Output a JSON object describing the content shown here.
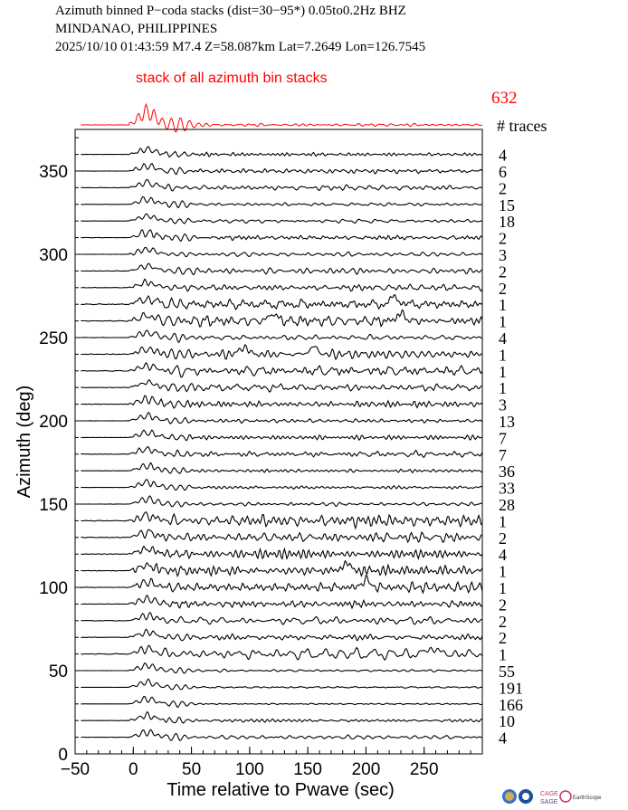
{
  "header": {
    "line1": "Azimuth binned P−coda stacks (dist=30−95*)  0.05to0.2Hz  BHZ",
    "line2": "MINDANAO, PHILIPPINES",
    "line3": "2025/10/10  01:43:59  M7.4  Z=58.087km Lat=7.2649 Lon=126.7545"
  },
  "stack_panel": {
    "label": "stack of all azimuth bin stacks",
    "total_traces": "632",
    "traces_header": "# traces",
    "color": "#ff0000"
  },
  "logos": {
    "items": [
      "earth-globe-logo",
      "nsf-logo",
      "cage-sage-logo",
      "earthscope-logo"
    ],
    "cage_text": "CAGE",
    "sage_text": "SAGE",
    "earthscope_text": "EarthScope"
  },
  "chart_data": {
    "type": "line",
    "xlabel": "Time relative to Pwave (sec)",
    "ylabel": "Azimuth (deg)",
    "xlim": [
      -50,
      300
    ],
    "ylim": [
      0,
      375
    ],
    "xticks": [
      -50,
      0,
      50,
      100,
      150,
      200,
      250
    ],
    "yticks": [
      0,
      50,
      100,
      150,
      200,
      250,
      300,
      350
    ],
    "grid": false,
    "trace_color": "#000000",
    "bins": [
      {
        "azimuth": 10,
        "traces": "4",
        "noise": 0.3,
        "late": []
      },
      {
        "azimuth": 20,
        "traces": "10",
        "noise": 0.28,
        "late": []
      },
      {
        "azimuth": 30,
        "traces": "166",
        "noise": 0.12,
        "late": []
      },
      {
        "azimuth": 40,
        "traces": "191",
        "noise": 0.12,
        "late": []
      },
      {
        "azimuth": 50,
        "traces": "55",
        "noise": 0.2,
        "late": []
      },
      {
        "azimuth": 60,
        "traces": "1",
        "noise": 0.7,
        "late": [
          257
        ]
      },
      {
        "azimuth": 70,
        "traces": "2",
        "noise": 0.6,
        "late": []
      },
      {
        "azimuth": 80,
        "traces": "2",
        "noise": 0.6,
        "late": []
      },
      {
        "azimuth": 90,
        "traces": "2",
        "noise": 0.6,
        "late": []
      },
      {
        "azimuth": 100,
        "traces": "1",
        "noise": 0.9,
        "late": [
          200
        ]
      },
      {
        "azimuth": 110,
        "traces": "1",
        "noise": 0.9,
        "late": [
          183
        ]
      },
      {
        "azimuth": 120,
        "traces": "4",
        "noise": 0.6,
        "late": []
      },
      {
        "azimuth": 130,
        "traces": "2",
        "noise": 0.7,
        "late": []
      },
      {
        "azimuth": 140,
        "traces": "1",
        "noise": 0.9,
        "late": []
      },
      {
        "azimuth": 150,
        "traces": "28",
        "noise": 0.3,
        "late": []
      },
      {
        "azimuth": 160,
        "traces": "33",
        "noise": 0.3,
        "late": []
      },
      {
        "azimuth": 170,
        "traces": "36",
        "noise": 0.3,
        "late": []
      },
      {
        "azimuth": 180,
        "traces": "7",
        "noise": 0.4,
        "late": []
      },
      {
        "azimuth": 190,
        "traces": "7",
        "noise": 0.4,
        "late": []
      },
      {
        "azimuth": 200,
        "traces": "13",
        "noise": 0.3,
        "late": []
      },
      {
        "azimuth": 210,
        "traces": "3",
        "noise": 0.5,
        "late": []
      },
      {
        "azimuth": 220,
        "traces": "1",
        "noise": 0.7,
        "late": []
      },
      {
        "azimuth": 230,
        "traces": "1",
        "noise": 0.7,
        "late": []
      },
      {
        "azimuth": 240,
        "traces": "1",
        "noise": 0.9,
        "late": [
          95,
          155
        ]
      },
      {
        "azimuth": 250,
        "traces": "4",
        "noise": 0.4,
        "late": []
      },
      {
        "azimuth": 260,
        "traces": "1",
        "noise": 0.9,
        "late": [
          120,
          230
        ]
      },
      {
        "azimuth": 270,
        "traces": "1",
        "noise": 0.9,
        "late": [
          225
        ]
      },
      {
        "azimuth": 280,
        "traces": "2",
        "noise": 0.5,
        "late": []
      },
      {
        "azimuth": 290,
        "traces": "2",
        "noise": 0.5,
        "late": []
      },
      {
        "azimuth": 300,
        "traces": "3",
        "noise": 0.4,
        "late": []
      },
      {
        "azimuth": 310,
        "traces": "2",
        "noise": 0.4,
        "late": []
      },
      {
        "azimuth": 320,
        "traces": "18",
        "noise": 0.3,
        "late": []
      },
      {
        "azimuth": 330,
        "traces": "15",
        "noise": 0.3,
        "late": []
      },
      {
        "azimuth": 340,
        "traces": "2",
        "noise": 0.4,
        "late": []
      },
      {
        "azimuth": 350,
        "traces": "6",
        "noise": 0.3,
        "late": []
      },
      {
        "azimuth": 360,
        "traces": "4",
        "noise": 0.3,
        "late": []
      }
    ]
  }
}
